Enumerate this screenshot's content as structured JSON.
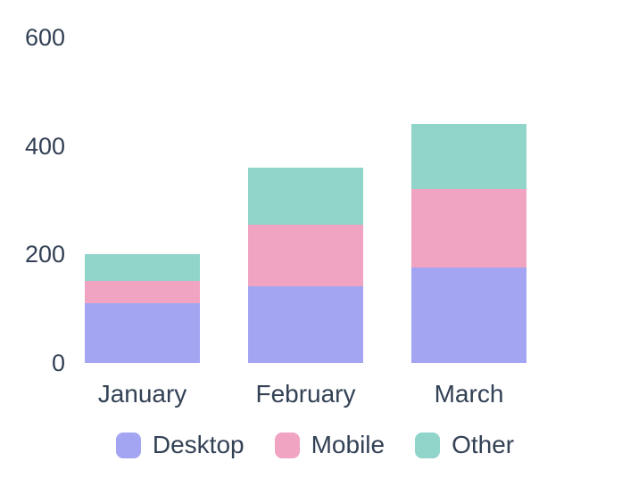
{
  "chart_data": {
    "type": "bar",
    "stacked": true,
    "title": "",
    "categories": [
      "January",
      "February",
      "March"
    ],
    "series": [
      {
        "name": "Desktop",
        "color": "#a3a5f2",
        "values": [
          110,
          140,
          175
        ]
      },
      {
        "name": "Mobile",
        "color": "#f1a4c2",
        "values": [
          40,
          115,
          145
        ]
      },
      {
        "name": "Other",
        "color": "#90d4ca",
        "values": [
          50,
          105,
          120
        ]
      }
    ],
    "y_ticks": [
      0,
      200,
      400,
      600
    ],
    "ylim": [
      0,
      600
    ],
    "grid": false,
    "axes_lines": false,
    "legend_position": "bottom",
    "axis_text_color": "#334155",
    "legend_text_color": "#334155",
    "background_color": "#ffffff"
  }
}
